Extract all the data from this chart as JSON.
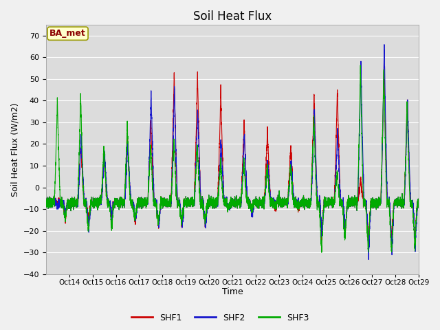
{
  "title": "Soil Heat Flux",
  "ylabel": "Soil Heat Flux (W/m2)",
  "xlabel": "Time",
  "ylim": [
    -40,
    75
  ],
  "yticks": [
    -40,
    -30,
    -20,
    -10,
    0,
    10,
    20,
    30,
    40,
    50,
    60,
    70
  ],
  "xtick_labels": [
    "Oct 14",
    "Oct 15",
    "Oct 16",
    "Oct 17",
    "Oct 18",
    "Oct 19",
    "Oct 20",
    "Oct 21",
    "Oct 22",
    "Oct 23",
    "Oct 24",
    "Oct 25",
    "Oct 26",
    "Oct 27",
    "Oct 28",
    "Oct 29"
  ],
  "legend_labels": [
    "SHF1",
    "SHF2",
    "SHF3"
  ],
  "line_colors": [
    "#cc0000",
    "#1515cc",
    "#00aa00"
  ],
  "annotation_text": "BA_met",
  "annotation_bg": "#ffffcc",
  "annotation_border": "#999900",
  "plot_bg_color": "#dcdcdc",
  "fig_bg_color": "#f0f0f0",
  "grid_color": "#ffffff",
  "title_fontsize": 12,
  "label_fontsize": 9,
  "tick_fontsize": 8,
  "n_days": 16,
  "n_per_day": 288
}
